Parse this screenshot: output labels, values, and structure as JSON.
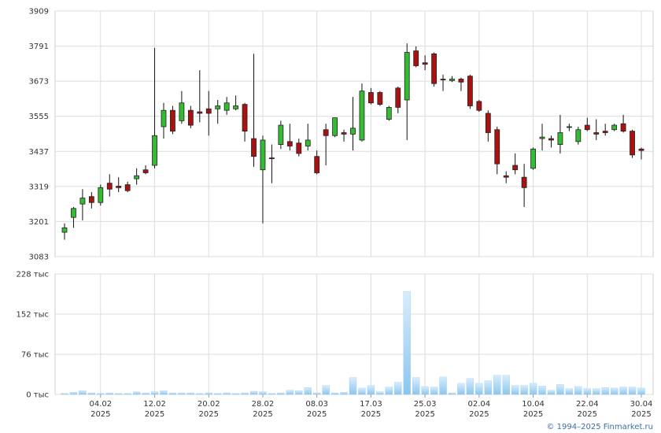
{
  "chart_data": [
    {
      "type": "candlestick",
      "open": [
        3165,
        3215,
        3260,
        3285,
        3265,
        3330,
        3320,
        3325,
        3345,
        3375,
        3390,
        3520,
        3575,
        3540,
        3575,
        3570,
        3580,
        3580,
        3575,
        3580,
        3595,
        3480,
        3375,
        3415,
        3460,
        3470,
        3465,
        3455,
        3420,
        3510,
        3490,
        3500,
        3495,
        3475,
        3635,
        3635,
        3545,
        3650,
        3610,
        3775,
        3735,
        3765,
        3680,
        3675,
        3680,
        3690,
        3605,
        3565,
        3510,
        3355,
        3390,
        3350,
        3380,
        3480,
        3480,
        3460,
        3520,
        3470,
        3525,
        3500,
        3505,
        3510,
        3530,
        3505,
        3445
      ],
      "high": [
        3195,
        3250,
        3310,
        3300,
        3325,
        3360,
        3350,
        3335,
        3380,
        3390,
        3785,
        3600,
        3590,
        3640,
        3590,
        3710,
        3640,
        3610,
        3620,
        3625,
        3600,
        3765,
        3490,
        3460,
        3540,
        3530,
        3480,
        3530,
        3440,
        3530,
        3550,
        3510,
        3620,
        3665,
        3650,
        3640,
        3590,
        3655,
        3800,
        3790,
        3760,
        3770,
        3695,
        3690,
        3685,
        3695,
        3610,
        3575,
        3520,
        3370,
        3430,
        3395,
        3450,
        3530,
        3490,
        3560,
        3530,
        3520,
        3550,
        3545,
        3530,
        3530,
        3560,
        3510,
        3450
      ],
      "low": [
        3140,
        3180,
        3205,
        3245,
        3255,
        3285,
        3300,
        3300,
        3325,
        3360,
        3380,
        3480,
        3495,
        3530,
        3515,
        3535,
        3490,
        3530,
        3560,
        3575,
        3470,
        3385,
        3195,
        3330,
        3445,
        3440,
        3420,
        3440,
        3360,
        3390,
        3485,
        3470,
        3440,
        3470,
        3595,
        3590,
        3540,
        3565,
        3475,
        3720,
        3710,
        3655,
        3640,
        3670,
        3640,
        3580,
        3570,
        3470,
        3360,
        3330,
        3360,
        3250,
        3375,
        3440,
        3450,
        3430,
        3505,
        3460,
        3505,
        3475,
        3490,
        3505,
        3500,
        3415,
        3410
      ],
      "close": [
        3180,
        3245,
        3280,
        3265,
        3315,
        3310,
        3315,
        3305,
        3355,
        3365,
        3490,
        3575,
        3505,
        3600,
        3525,
        3565,
        3565,
        3590,
        3600,
        3590,
        3505,
        3420,
        3475,
        3413,
        3525,
        3455,
        3430,
        3475,
        3365,
        3490,
        3550,
        3495,
        3515,
        3640,
        3600,
        3595,
        3585,
        3585,
        3770,
        3725,
        3730,
        3665,
        3678,
        3680,
        3670,
        3590,
        3575,
        3500,
        3395,
        3350,
        3375,
        3315,
        3445,
        3485,
        3475,
        3500,
        3520,
        3510,
        3510,
        3495,
        3500,
        3525,
        3505,
        3425,
        3440
      ],
      "up_color": "#33bb33",
      "down_color": "#aa1111",
      "ylim": [
        3083,
        3909
      ],
      "yticks": [
        3083,
        3201,
        3319,
        3437,
        3555,
        3673,
        3791,
        3909
      ],
      "grid": true
    },
    {
      "type": "bar",
      "values": [
        2,
        4,
        7,
        3,
        2,
        3,
        2,
        2,
        5,
        3,
        5,
        7,
        3,
        3,
        3,
        2,
        3,
        2,
        3,
        2,
        3,
        6,
        5,
        2,
        3,
        8,
        7,
        13,
        3,
        17,
        3,
        4,
        32,
        12,
        17,
        5,
        14,
        23,
        195,
        32,
        15,
        14,
        33,
        3,
        21,
        30,
        21,
        26,
        36,
        36,
        17,
        17,
        21,
        16,
        8,
        19,
        11,
        15,
        11,
        11,
        13,
        12,
        14,
        14,
        12
      ],
      "categories": [
        null,
        null,
        null,
        null,
        {
          "date": "04.02",
          "year": "2025"
        },
        null,
        null,
        null,
        null,
        null,
        {
          "date": "12.02",
          "year": "2025"
        },
        null,
        null,
        null,
        null,
        null,
        {
          "date": "20.02",
          "year": "2025"
        },
        null,
        null,
        null,
        null,
        null,
        {
          "date": "28.02",
          "year": "2025"
        },
        null,
        null,
        null,
        null,
        null,
        {
          "date": "08.03",
          "year": "2025"
        },
        null,
        null,
        null,
        null,
        null,
        {
          "date": "17.03",
          "year": "2025"
        },
        null,
        null,
        null,
        null,
        null,
        {
          "date": "25.03",
          "year": "2025"
        },
        null,
        null,
        null,
        null,
        null,
        {
          "date": "02.04",
          "year": "2025"
        },
        null,
        null,
        null,
        null,
        null,
        {
          "date": "10.04",
          "year": "2025"
        },
        null,
        null,
        null,
        null,
        null,
        {
          "date": "22.04",
          "year": "2025"
        },
        null,
        null,
        null,
        null,
        null,
        {
          "date": "30.04",
          "year": "2025"
        }
      ],
      "color": "#8cc6f0",
      "ylim": [
        0,
        228
      ],
      "yticks": [
        {
          "value": 0,
          "label": "0 тыс"
        },
        {
          "value": 76,
          "label": "76 тыс"
        },
        {
          "value": 152,
          "label": "152 тыс"
        },
        {
          "value": 228,
          "label": "228 тыс"
        }
      ],
      "grid": true
    }
  ],
  "footer": {
    "copyright": "© 1994–2025 Finmarket.ru"
  }
}
